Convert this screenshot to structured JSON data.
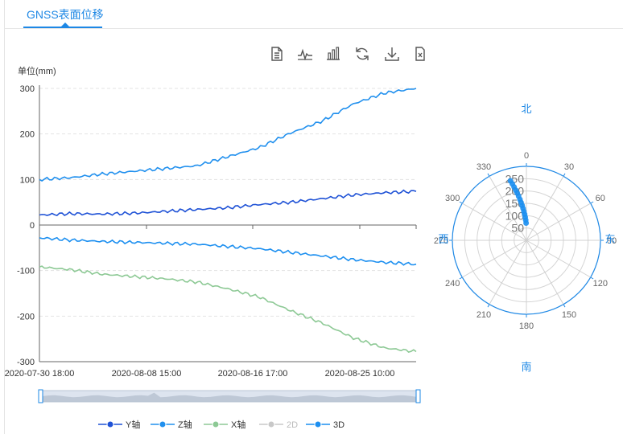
{
  "tab": {
    "label": "GNSS表面位移"
  },
  "toolbar": {
    "icons": [
      "data-view-icon",
      "line-chart-icon",
      "bar-chart-icon",
      "restore-icon",
      "download-icon",
      "export-icon"
    ]
  },
  "colors": {
    "y": "#1f52d6",
    "z": "#2190ee",
    "x": "#8dc995",
    "d2": "#c8c8c8",
    "d3": "#1c8ff0",
    "accent": "#1e88e5"
  },
  "chart_data": [
    {
      "type": "line",
      "ylabel": "单位(mm)",
      "ylim": [
        -300,
        300
      ],
      "yticks": [
        "300",
        "200",
        "100",
        "0",
        "-100",
        "-200",
        "-300"
      ],
      "xtick_labels": [
        "2020-07-30 18:00",
        "2020-08-08 15:00",
        "2020-08-16 17:00",
        "2020-08-25 10:00"
      ],
      "x": [
        "2020-07-30 18:00",
        "2020-08-02 12:00",
        "2020-08-05 06:00",
        "2020-08-08 00:00",
        "2020-08-10 18:00",
        "2020-08-13 12:00",
        "2020-08-16 06:00",
        "2020-08-19 00:00",
        "2020-08-21 18:00",
        "2020-08-24 12:00",
        "2020-08-27 06:00",
        "2020-08-30 00:00",
        "2020-09-02 00:00"
      ],
      "series": [
        {
          "name": "Y轴",
          "values": [
            22,
            25,
            24,
            26,
            30,
            34,
            38,
            45,
            50,
            58,
            66,
            71,
            74
          ]
        },
        {
          "name": "Z轴",
          "values": [
            100,
            104,
            112,
            118,
            124,
            130,
            150,
            170,
            202,
            228,
            266,
            290,
            300
          ]
        },
        {
          "name": "X轴",
          "values": [
            -92,
            -98,
            -108,
            -113,
            -118,
            -125,
            -140,
            -158,
            -188,
            -215,
            -248,
            -270,
            -278
          ]
        },
        {
          "name": "3D",
          "values": [
            -28,
            -33,
            -36,
            -38,
            -40,
            -42,
            -47,
            -52,
            -60,
            -68,
            -76,
            -82,
            -86
          ]
        }
      ],
      "legend": [
        "Y轴",
        "Z轴",
        "X轴",
        "2D",
        "3D"
      ],
      "legend_position": "bottom",
      "grid": true
    },
    {
      "type": "polar-scatter",
      "direction_labels": {
        "north": "北",
        "south": "南",
        "east": "东",
        "west": "西"
      },
      "angle_ticks": [
        "0",
        "30",
        "60",
        "90",
        "120",
        "150",
        "180",
        "210",
        "240",
        "270",
        "300",
        "330"
      ],
      "radius_ticks": [
        "50",
        "100",
        "150",
        "200",
        "250"
      ],
      "rmax": 300,
      "points": [
        {
          "angle": 345,
          "radius": 250
        },
        {
          "angle": 346,
          "radius": 236
        },
        {
          "angle": 347,
          "radius": 222
        },
        {
          "angle": 348,
          "radius": 208
        },
        {
          "angle": 349,
          "radius": 195
        },
        {
          "angle": 350,
          "radius": 182
        },
        {
          "angle": 351,
          "radius": 168
        },
        {
          "angle": 352,
          "radius": 155
        },
        {
          "angle": 353,
          "radius": 142
        },
        {
          "angle": 354,
          "radius": 130
        },
        {
          "angle": 355,
          "radius": 118
        },
        {
          "angle": 356,
          "radius": 106
        },
        {
          "angle": 357,
          "radius": 94
        },
        {
          "angle": 358,
          "radius": 82
        },
        {
          "angle": 359,
          "radius": 70
        }
      ]
    }
  ]
}
